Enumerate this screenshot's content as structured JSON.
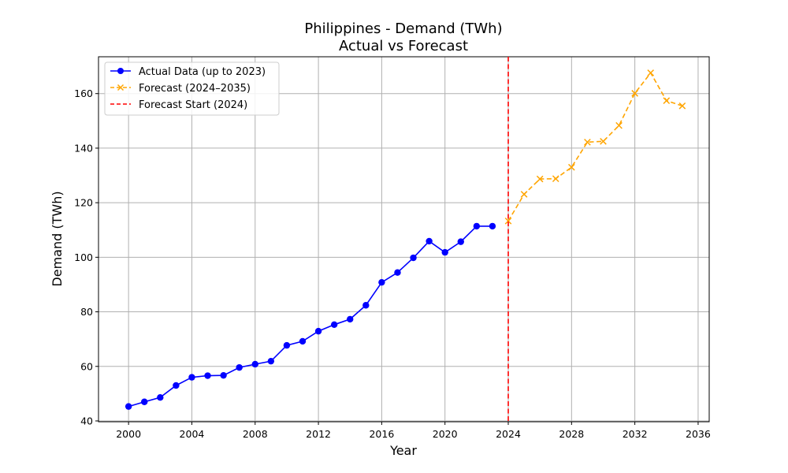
{
  "chart_data": {
    "type": "line",
    "title": "Philippines - Demand (TWh)",
    "subtitle": "Actual vs Forecast",
    "xlabel": "Year",
    "ylabel": "Demand (TWh)",
    "xlim": [
      1998.1,
      2036.7
    ],
    "ylim": [
      39.7,
      173.5
    ],
    "xticks": [
      2000,
      2004,
      2008,
      2012,
      2016,
      2020,
      2024,
      2028,
      2032,
      2036
    ],
    "yticks": [
      40,
      60,
      80,
      100,
      120,
      140,
      160
    ],
    "grid": true,
    "legend_position": "top-left",
    "series": [
      {
        "name": "Actual Data (up to 2023)",
        "color": "#0000ff",
        "style": "solid",
        "marker": "circle",
        "x": [
          2000,
          2001,
          2002,
          2003,
          2004,
          2005,
          2006,
          2007,
          2008,
          2009,
          2010,
          2011,
          2012,
          2013,
          2014,
          2015,
          2016,
          2017,
          2018,
          2019,
          2020,
          2021,
          2022,
          2023
        ],
        "y": [
          45.3,
          47.0,
          48.6,
          53.0,
          56.0,
          56.6,
          56.7,
          59.6,
          60.8,
          61.9,
          67.7,
          69.2,
          72.9,
          75.3,
          77.3,
          82.4,
          90.8,
          94.4,
          99.8,
          105.9,
          101.8,
          105.7,
          111.4,
          111.4
        ]
      },
      {
        "name": "Forecast (2024–2035)",
        "color": "#ffa500",
        "style": "dashed",
        "marker": "x",
        "x": [
          2024,
          2025,
          2026,
          2027,
          2028,
          2029,
          2030,
          2031,
          2032,
          2033,
          2034,
          2035
        ],
        "y": [
          113.3,
          123.1,
          128.7,
          128.8,
          133.0,
          142.2,
          142.5,
          148.3,
          160.1,
          167.6,
          157.4,
          155.5
        ]
      }
    ],
    "vlines": [
      {
        "name": "Forecast Start (2024)",
        "x": 2024,
        "color": "#ff0000",
        "style": "dashed"
      }
    ]
  }
}
